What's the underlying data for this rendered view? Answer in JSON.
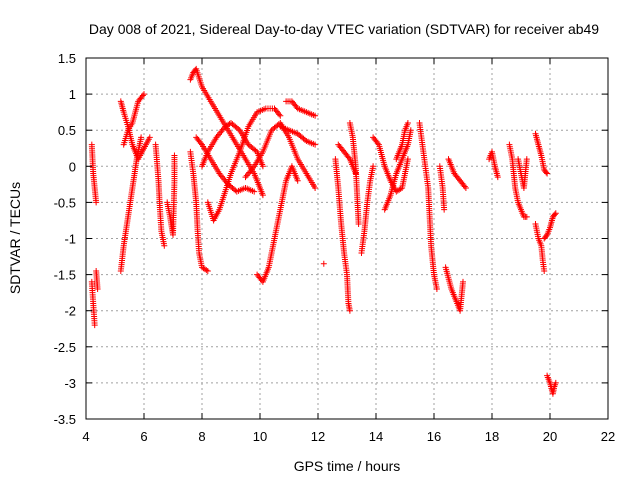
{
  "chart_data": {
    "type": "scatter",
    "title": "Day 008 of 2021, Sidereal Day-to-day VTEC variation (SDTVAR) for receiver ab49",
    "xlabel": "GPS time / hours",
    "ylabel": "SDTVAR / TECUs",
    "xlim": [
      4,
      22
    ],
    "ylim": [
      -3.5,
      1.5
    ],
    "xticks": [
      "4",
      "6",
      "8",
      "10",
      "12",
      "14",
      "16",
      "18",
      "20",
      "22"
    ],
    "yticks": [
      "1.5",
      "1",
      "0.5",
      "0",
      "-0.5",
      "-1",
      "-1.5",
      "-2",
      "-2.5",
      "-3",
      "-3.5"
    ],
    "grid": true,
    "marker": "+",
    "series": [
      {
        "name": "SDTVAR",
        "color": "#ff0000",
        "tracks": [
          [
            [
              4.2,
              0.3
            ],
            [
              4.25,
              -0.1
            ],
            [
              4.3,
              -0.3
            ],
            [
              4.35,
              -0.5
            ]
          ],
          [
            [
              4.2,
              -1.6
            ],
            [
              4.25,
              -1.9
            ],
            [
              4.3,
              -2.2
            ]
          ],
          [
            [
              4.35,
              -1.45
            ],
            [
              4.4,
              -1.7
            ]
          ],
          [
            [
              5.2,
              -1.45
            ],
            [
              5.3,
              -1.1
            ],
            [
              5.45,
              -0.7
            ],
            [
              5.6,
              -0.3
            ],
            [
              5.75,
              0.1
            ],
            [
              5.9,
              0.4
            ]
          ],
          [
            [
              5.2,
              0.9
            ],
            [
              5.3,
              0.75
            ],
            [
              5.45,
              0.55
            ],
            [
              5.6,
              0.3
            ],
            [
              5.8,
              0.1
            ],
            [
              6.0,
              0.25
            ],
            [
              6.2,
              0.4
            ]
          ],
          [
            [
              5.3,
              0.3
            ],
            [
              5.45,
              0.5
            ],
            [
              5.6,
              0.6
            ],
            [
              5.8,
              0.9
            ],
            [
              6.0,
              1.0
            ]
          ],
          [
            [
              6.4,
              0.3
            ],
            [
              6.5,
              -0.2
            ],
            [
              6.55,
              -0.6
            ],
            [
              6.6,
              -0.9
            ],
            [
              6.7,
              -1.1
            ]
          ],
          [
            [
              6.8,
              -0.5
            ],
            [
              6.9,
              -0.7
            ],
            [
              7.0,
              -0.95
            ],
            [
              7.05,
              -0.2
            ],
            [
              7.05,
              0.15
            ]
          ],
          [
            [
              7.6,
              1.2
            ],
            [
              7.7,
              1.3
            ],
            [
              7.8,
              1.35
            ],
            [
              8.0,
              1.1
            ],
            [
              8.3,
              0.9
            ],
            [
              8.6,
              0.7
            ],
            [
              8.9,
              0.5
            ],
            [
              9.2,
              0.3
            ],
            [
              9.5,
              0.1
            ],
            [
              9.8,
              -0.1
            ],
            [
              10.0,
              -0.3
            ],
            [
              10.1,
              -0.4
            ]
          ],
          [
            [
              7.6,
              0.2
            ],
            [
              7.7,
              -0.1
            ],
            [
              7.8,
              -0.5
            ],
            [
              7.85,
              -0.9
            ],
            [
              7.9,
              -1.2
            ],
            [
              8.0,
              -1.4
            ],
            [
              8.2,
              -1.45
            ]
          ],
          [
            [
              7.8,
              0.4
            ],
            [
              8.0,
              0.3
            ],
            [
              8.3,
              0.1
            ],
            [
              8.6,
              -0.1
            ],
            [
              8.9,
              -0.25
            ],
            [
              9.2,
              -0.35
            ],
            [
              9.5,
              -0.3
            ],
            [
              9.8,
              -0.35
            ]
          ],
          [
            [
              8.0,
              0.0
            ],
            [
              8.2,
              0.2
            ],
            [
              8.5,
              0.4
            ],
            [
              8.8,
              0.55
            ],
            [
              9.0,
              0.6
            ],
            [
              9.3,
              0.5
            ],
            [
              9.6,
              0.3
            ],
            [
              9.9,
              0.2
            ],
            [
              10.1,
              0.0
            ]
          ],
          [
            [
              8.2,
              -0.5
            ],
            [
              8.4,
              -0.75
            ],
            [
              8.6,
              -0.6
            ],
            [
              8.8,
              -0.35
            ],
            [
              9.0,
              -0.1
            ],
            [
              9.3,
              0.2
            ],
            [
              9.6,
              0.55
            ],
            [
              9.9,
              0.75
            ],
            [
              10.2,
              0.8
            ],
            [
              10.5,
              0.8
            ],
            [
              10.7,
              0.7
            ]
          ],
          [
            [
              9.5,
              -0.15
            ],
            [
              9.8,
              0.0
            ],
            [
              10.1,
              0.2
            ],
            [
              10.4,
              0.5
            ],
            [
              10.7,
              0.6
            ],
            [
              11.0,
              0.4
            ],
            [
              11.3,
              0.1
            ],
            [
              11.6,
              -0.1
            ],
            [
              11.9,
              -0.3
            ]
          ],
          [
            [
              9.9,
              -1.5
            ],
            [
              10.1,
              -1.6
            ],
            [
              10.3,
              -1.4
            ],
            [
              10.5,
              -1.0
            ],
            [
              10.7,
              -0.6
            ],
            [
              10.9,
              -0.2
            ],
            [
              11.1,
              0.0
            ],
            [
              11.3,
              -0.2
            ]
          ],
          [
            [
              10.9,
              0.9
            ],
            [
              11.1,
              0.9
            ],
            [
              11.3,
              0.8
            ],
            [
              11.6,
              0.75
            ],
            [
              11.9,
              0.7
            ]
          ],
          [
            [
              10.7,
              0.55
            ],
            [
              11.0,
              0.5
            ],
            [
              11.3,
              0.45
            ],
            [
              11.6,
              0.35
            ],
            [
              11.9,
              0.3
            ]
          ],
          [
            [
              12.2,
              -1.35
            ]
          ],
          [
            [
              12.6,
              0.1
            ],
            [
              12.7,
              -0.3
            ],
            [
              12.8,
              -0.8
            ],
            [
              12.9,
              -1.2
            ],
            [
              13.0,
              -1.5
            ],
            [
              13.05,
              -1.9
            ],
            [
              13.1,
              -2.0
            ]
          ],
          [
            [
              12.7,
              0.3
            ],
            [
              12.9,
              0.2
            ],
            [
              13.1,
              0.1
            ],
            [
              13.3,
              -0.1
            ]
          ],
          [
            [
              13.1,
              0.6
            ],
            [
              13.2,
              0.4
            ],
            [
              13.3,
              0.0
            ],
            [
              13.35,
              -0.4
            ],
            [
              13.4,
              -0.8
            ]
          ],
          [
            [
              13.5,
              -1.2
            ],
            [
              13.6,
              -0.9
            ],
            [
              13.7,
              -0.5
            ],
            [
              13.8,
              -0.2
            ],
            [
              13.9,
              0.0
            ]
          ],
          [
            [
              13.9,
              0.4
            ],
            [
              14.1,
              0.3
            ],
            [
              14.3,
              0.0
            ],
            [
              14.5,
              -0.2
            ],
            [
              14.7,
              -0.35
            ],
            [
              14.9,
              -0.3
            ],
            [
              15.1,
              0.1
            ]
          ],
          [
            [
              14.3,
              -0.6
            ],
            [
              14.5,
              -0.4
            ],
            [
              14.7,
              -0.1
            ],
            [
              14.9,
              0.1
            ],
            [
              15.1,
              0.3
            ],
            [
              15.2,
              0.5
            ]
          ],
          [
            [
              14.7,
              0.1
            ],
            [
              14.9,
              0.3
            ],
            [
              15.0,
              0.5
            ],
            [
              15.1,
              0.6
            ]
          ],
          [
            [
              15.5,
              0.6
            ],
            [
              15.6,
              0.3
            ],
            [
              15.7,
              0.0
            ],
            [
              15.8,
              -0.3
            ],
            [
              15.85,
              -0.7
            ],
            [
              15.9,
              -1.1
            ],
            [
              16.0,
              -1.5
            ],
            [
              16.1,
              -1.7
            ]
          ],
          [
            [
              16.2,
              0.0
            ],
            [
              16.3,
              -0.3
            ],
            [
              16.35,
              -0.6
            ]
          ],
          [
            [
              16.4,
              -1.4
            ],
            [
              16.6,
              -1.7
            ],
            [
              16.8,
              -1.9
            ],
            [
              16.9,
              -2.0
            ],
            [
              17.0,
              -1.6
            ]
          ],
          [
            [
              16.5,
              0.1
            ],
            [
              16.7,
              -0.1
            ],
            [
              16.9,
              -0.2
            ],
            [
              17.1,
              -0.3
            ]
          ],
          [
            [
              17.9,
              0.1
            ],
            [
              18.0,
              0.2
            ],
            [
              18.1,
              0.0
            ],
            [
              18.2,
              -0.15
            ]
          ],
          [
            [
              18.6,
              0.3
            ],
            [
              18.7,
              0.1
            ],
            [
              18.8,
              -0.3
            ],
            [
              18.9,
              -0.5
            ],
            [
              19.1,
              -0.7
            ],
            [
              19.2,
              -0.7
            ]
          ],
          [
            [
              18.9,
              0.1
            ],
            [
              19.0,
              -0.1
            ],
            [
              19.1,
              -0.3
            ],
            [
              19.2,
              0.1
            ]
          ],
          [
            [
              19.5,
              0.45
            ],
            [
              19.6,
              0.3
            ],
            [
              19.7,
              0.15
            ],
            [
              19.8,
              -0.05
            ],
            [
              19.9,
              -0.1
            ]
          ],
          [
            [
              19.5,
              -0.8
            ],
            [
              19.6,
              -1.0
            ],
            [
              19.7,
              -1.1
            ],
            [
              19.75,
              -1.3
            ],
            [
              19.8,
              -1.45
            ]
          ],
          [
            [
              19.8,
              -1.0
            ],
            [
              19.9,
              -0.95
            ],
            [
              20.0,
              -0.85
            ],
            [
              20.1,
              -0.7
            ],
            [
              20.2,
              -0.65
            ]
          ],
          [
            [
              19.9,
              -2.9
            ],
            [
              20.0,
              -3.0
            ],
            [
              20.1,
              -3.15
            ],
            [
              20.15,
              -3.05
            ],
            [
              20.2,
              -3.0
            ]
          ]
        ]
      }
    ]
  }
}
